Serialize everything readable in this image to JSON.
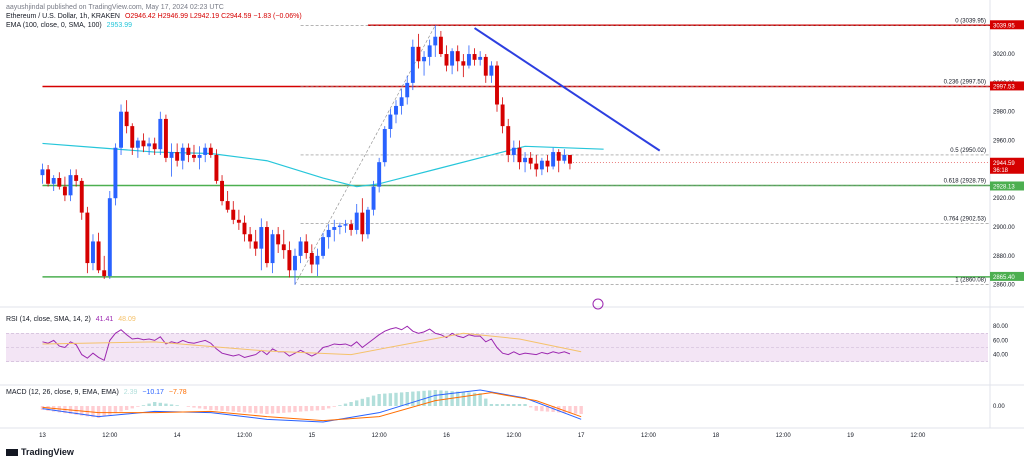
{
  "header": {
    "published": "aayushjindal published on TradingView.com, May 17, 2024 02:23 UTC",
    "symbol": "Ethereum / U.S. Dollar, 1h, KRAKEN",
    "ohlc": "O2946.42  H2946.99  L2942.19  C2944.59  −1.83 (−0.06%)",
    "ema_label": "EMA (100, close, 0, SMA, 100)",
    "ema_value": "2953.99",
    "rsi_label": "RSI (14, close, SMA, 14, 2)",
    "rsi_values": [
      "41.41",
      "48.09"
    ],
    "macd_label": "MACD (12, 26, close, 9, EMA, EMA)",
    "macd_values": [
      "2.39",
      "−10.17",
      "−7.78"
    ]
  },
  "watermark": "TradingView",
  "colors": {
    "up": "#2962ff",
    "down": "#d50000",
    "ema": "#26c6da",
    "fib_red": "#e53935",
    "fib_green": "#4caf50",
    "trend": "#2d3fe0",
    "rsi": "#9c27b0",
    "rsi_band": "#f3e5f5",
    "rsi_ma": "#f5c26b",
    "macd": "#2962ff",
    "signal": "#ff6d00"
  },
  "chart_data": {
    "type": "candlestick",
    "price_axis": {
      "ticks": [
        "3020.00",
        "3000.00",
        "2980.00",
        "2960.00",
        "2940.00",
        "2920.00",
        "2900.00",
        "2880.00",
        "2860.00"
      ],
      "range": [
        2848,
        3045
      ]
    },
    "time_axis": {
      "labels": [
        "13",
        "12:00",
        "14",
        "12:00",
        "15",
        "12:00",
        "16",
        "12:00",
        "17",
        "12:00",
        "18",
        "12:00",
        "19",
        "12:00"
      ],
      "label_index": [
        0,
        12,
        24,
        36,
        48,
        60,
        72,
        84,
        96,
        108,
        120,
        132,
        144,
        156
      ],
      "start_offset": -6,
      "total_bars": 175
    },
    "price_labels": [
      {
        "text": "3039.95",
        "value": 3039.95,
        "color": "#d50000"
      },
      {
        "text": "2997.53",
        "value": 2997.53,
        "color": "#d50000"
      },
      {
        "text": "2944.59",
        "value": 2944.59,
        "color": "#d50000",
        "sub": "36:18"
      },
      {
        "text": "2928.13",
        "value": 2928.13,
        "color": "#4caf50"
      },
      {
        "text": "2865.40",
        "value": 2865.4,
        "color": "#4caf50"
      }
    ],
    "fib_levels": [
      {
        "label": "0 (3039.95)",
        "value": 3039.95
      },
      {
        "label": "0.236 (2997.50)",
        "value": 2997.5
      },
      {
        "label": "0.5 (2950.02)",
        "value": 2950.02
      },
      {
        "label": "0.618 (2928.79)",
        "value": 2928.79
      },
      {
        "label": "0.764 (2902.53)",
        "value": 2902.53
      },
      {
        "label": "1 (2860.08)",
        "value": 2860.08
      }
    ],
    "horizontal_lines": [
      {
        "value": 3039.95,
        "color": "#d50000",
        "from_bar": 58
      },
      {
        "value": 2997.5,
        "color": "#d50000",
        "from_bar": 0
      },
      {
        "value": 2928.79,
        "color": "#4caf50",
        "from_bar": 0
      },
      {
        "value": 2865.4,
        "color": "#4caf50",
        "from_bar": 0
      }
    ],
    "trend_line": {
      "from": [
        77,
        3038
      ],
      "to": [
        110,
        2953
      ]
    },
    "candles": [
      [
        2936,
        2944,
        2930,
        2940
      ],
      [
        2940,
        2943,
        2928,
        2930
      ],
      [
        2930,
        2936,
        2925,
        2934
      ],
      [
        2934,
        2938,
        2926,
        2928
      ],
      [
        2928,
        2935,
        2918,
        2922
      ],
      [
        2922,
        2940,
        2918,
        2936
      ],
      [
        2936,
        2940,
        2928,
        2932
      ],
      [
        2932,
        2934,
        2905,
        2910
      ],
      [
        2910,
        2914,
        2868,
        2875
      ],
      [
        2875,
        2895,
        2870,
        2890
      ],
      [
        2890,
        2896,
        2868,
        2870
      ],
      [
        2870,
        2880,
        2864,
        2866
      ],
      [
        2866,
        2925,
        2864,
        2920
      ],
      [
        2920,
        2958,
        2915,
        2955
      ],
      [
        2955,
        2985,
        2950,
        2980
      ],
      [
        2980,
        2988,
        2965,
        2970
      ],
      [
        2970,
        2972,
        2950,
        2955
      ],
      [
        2955,
        2962,
        2948,
        2960
      ],
      [
        2960,
        2965,
        2952,
        2956
      ],
      [
        2956,
        2962,
        2950,
        2958
      ],
      [
        2958,
        2962,
        2950,
        2954
      ],
      [
        2954,
        2980,
        2950,
        2975
      ],
      [
        2975,
        2978,
        2945,
        2948
      ],
      [
        2948,
        2958,
        2935,
        2952
      ],
      [
        2952,
        2958,
        2942,
        2946
      ],
      [
        2946,
        2958,
        2940,
        2955
      ],
      [
        2955,
        2958,
        2945,
        2950
      ],
      [
        2950,
        2957,
        2945,
        2948
      ],
      [
        2948,
        2956,
        2940,
        2950
      ],
      [
        2950,
        2958,
        2945,
        2955
      ],
      [
        2955,
        2958,
        2948,
        2950
      ],
      [
        2950,
        2954,
        2930,
        2932
      ],
      [
        2932,
        2936,
        2915,
        2918
      ],
      [
        2918,
        2925,
        2910,
        2912
      ],
      [
        2912,
        2918,
        2902,
        2905
      ],
      [
        2905,
        2912,
        2898,
        2903
      ],
      [
        2903,
        2908,
        2890,
        2895
      ],
      [
        2895,
        2900,
        2885,
        2890
      ],
      [
        2890,
        2898,
        2880,
        2885
      ],
      [
        2885,
        2906,
        2870,
        2900
      ],
      [
        2900,
        2904,
        2872,
        2875
      ],
      [
        2875,
        2898,
        2868,
        2895
      ],
      [
        2895,
        2900,
        2882,
        2888
      ],
      [
        2888,
        2898,
        2878,
        2884
      ],
      [
        2884,
        2890,
        2865,
        2870
      ],
      [
        2870,
        2885,
        2860,
        2880
      ],
      [
        2880,
        2893,
        2875,
        2890
      ],
      [
        2890,
        2895,
        2878,
        2882
      ],
      [
        2882,
        2888,
        2868,
        2874
      ],
      [
        2874,
        2885,
        2866,
        2880
      ],
      [
        2880,
        2896,
        2878,
        2893
      ],
      [
        2893,
        2902,
        2885,
        2898
      ],
      [
        2898,
        2905,
        2890,
        2900
      ],
      [
        2900,
        2903,
        2895,
        2901
      ],
      [
        2901,
        2905,
        2896,
        2902
      ],
      [
        2902,
        2905,
        2894,
        2898
      ],
      [
        2898,
        2916,
        2895,
        2910
      ],
      [
        2910,
        2920,
        2890,
        2895
      ],
      [
        2895,
        2914,
        2892,
        2912
      ],
      [
        2912,
        2932,
        2908,
        2928
      ],
      [
        2928,
        2948,
        2924,
        2945
      ],
      [
        2945,
        2970,
        2942,
        2968
      ],
      [
        2968,
        2982,
        2962,
        2978
      ],
      [
        2978,
        2988,
        2972,
        2984
      ],
      [
        2984,
        2996,
        2978,
        2990
      ],
      [
        2990,
        3005,
        2985,
        3000
      ],
      [
        3000,
        3030,
        2995,
        3025
      ],
      [
        3025,
        3034,
        3010,
        3015
      ],
      [
        3015,
        3022,
        3005,
        3018
      ],
      [
        3018,
        3030,
        3012,
        3026
      ],
      [
        3026,
        3040,
        3018,
        3032
      ],
      [
        3032,
        3036,
        3018,
        3020
      ],
      [
        3020,
        3026,
        3008,
        3012
      ],
      [
        3012,
        3024,
        3006,
        3022
      ],
      [
        3022,
        3026,
        3008,
        3015
      ],
      [
        3015,
        3020,
        3004,
        3012
      ],
      [
        3012,
        3026,
        3010,
        3020
      ],
      [
        3020,
        3024,
        3012,
        3016
      ],
      [
        3016,
        3022,
        3012,
        3018
      ],
      [
        3018,
        3020,
        3000,
        3005
      ],
      [
        3005,
        3015,
        3000,
        3012
      ],
      [
        3012,
        3015,
        2980,
        2985
      ],
      [
        2985,
        2990,
        2965,
        2970
      ],
      [
        2970,
        2975,
        2945,
        2950
      ],
      [
        2950,
        2960,
        2945,
        2955
      ],
      [
        2955,
        2960,
        2940,
        2945
      ],
      [
        2945,
        2952,
        2938,
        2948
      ],
      [
        2948,
        2952,
        2940,
        2944
      ],
      [
        2944,
        2950,
        2935,
        2940
      ],
      [
        2940,
        2948,
        2936,
        2946
      ],
      [
        2946,
        2950,
        2938,
        2942
      ],
      [
        2942,
        2955,
        2940,
        2952
      ],
      [
        2952,
        2954,
        2938,
        2946
      ],
      [
        2946,
        2954,
        2944,
        2950
      ],
      [
        2950,
        2950,
        2940,
        2944
      ]
    ],
    "candle_start_bar": 0,
    "ema": [
      [
        0,
        2958
      ],
      [
        10,
        2955
      ],
      [
        20,
        2952
      ],
      [
        30,
        2951
      ],
      [
        40,
        2946
      ],
      [
        50,
        2934
      ],
      [
        56,
        2928
      ],
      [
        60,
        2930
      ],
      [
        70,
        2940
      ],
      [
        80,
        2950
      ],
      [
        86,
        2956
      ],
      [
        100,
        2954
      ]
    ],
    "rsi": {
      "axis_ticks": [
        "80.00",
        "60.00",
        "40.00"
      ],
      "band": [
        30,
        70
      ],
      "values": [
        58,
        56,
        60,
        52,
        50,
        58,
        54,
        40,
        35,
        42,
        36,
        32,
        60,
        70,
        75,
        68,
        62,
        63,
        61,
        62,
        60,
        65,
        55,
        58,
        56,
        60,
        57,
        56,
        58,
        60,
        56,
        48,
        42,
        40,
        38,
        40,
        36,
        38,
        40,
        46,
        40,
        48,
        44,
        44,
        38,
        42,
        46,
        42,
        38,
        42,
        50,
        52,
        55,
        54,
        55,
        52,
        58,
        50,
        56,
        62,
        68,
        73,
        76,
        78,
        75,
        80,
        73,
        70,
        72,
        76,
        70,
        68,
        64,
        70,
        66,
        64,
        68,
        66,
        66,
        58,
        62,
        50,
        42,
        40,
        44,
        40,
        42,
        41,
        40,
        43,
        41,
        44,
        42,
        44,
        41
      ],
      "ma": [
        [
          0,
          55
        ],
        [
          20,
          58
        ],
        [
          40,
          45
        ],
        [
          55,
          40
        ],
        [
          65,
          55
        ],
        [
          75,
          70
        ],
        [
          85,
          62
        ],
        [
          96,
          44
        ]
      ]
    },
    "macd": {
      "axis_ticks": [
        "0.00"
      ],
      "zero": 0,
      "macd_line": [
        [
          0,
          -2
        ],
        [
          10,
          -8
        ],
        [
          20,
          -4
        ],
        [
          30,
          -5
        ],
        [
          40,
          -10
        ],
        [
          50,
          -12
        ],
        [
          60,
          -5
        ],
        [
          70,
          8
        ],
        [
          78,
          12
        ],
        [
          86,
          6
        ],
        [
          96,
          -10
        ]
      ],
      "signal_line": [
        [
          0,
          -1
        ],
        [
          10,
          -5
        ],
        [
          20,
          -5
        ],
        [
          30,
          -4
        ],
        [
          40,
          -8
        ],
        [
          50,
          -11
        ],
        [
          60,
          -8
        ],
        [
          70,
          4
        ],
        [
          80,
          10
        ],
        [
          88,
          4
        ],
        [
          96,
          -8
        ]
      ]
    }
  }
}
